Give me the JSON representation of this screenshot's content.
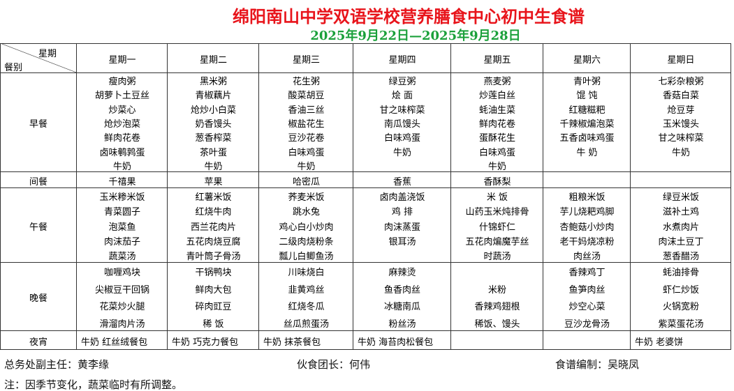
{
  "header": {
    "title": "绵阳南山中学双语学校营养膳食中心初中生食谱",
    "subtitle": "2025年9月22日—2025年9月28日"
  },
  "table": {
    "corner_top": "星期",
    "corner_bottom": "餐别",
    "days": [
      "星期一",
      "星期二",
      "星期三",
      "星期四",
      "星期五",
      "星期六",
      "星期日"
    ],
    "meals": [
      {
        "name": "早餐",
        "rows": [
          [
            "瘦肉粥",
            "黑米粥",
            "花生粥",
            "绿豆粥",
            "燕麦粥",
            "青叶粥",
            "七彩杂粮粥"
          ],
          [
            "胡萝卜土豆丝",
            "青椒藕片",
            "酸菜胡豆",
            "烩 面",
            "炒莲白丝",
            "馄 饨",
            "香菇白菜"
          ],
          [
            "炒菜心",
            "炝炒小白菜",
            "香油三丝",
            "甘之味榨菜",
            "蚝油生菜",
            "红糖糍粑",
            "炝豆芽"
          ],
          [
            "炝炒泡菜",
            "奶香馒头",
            "椒盐花生",
            "南瓜馒头",
            "鲜肉花卷",
            "千辣椒煸泡菜",
            "玉米馒头"
          ],
          [
            "鲜肉花卷",
            "葱香榨菜",
            "豆沙花卷",
            "白味鸡蛋",
            "蛋酥花生",
            "五香卤味鸡蛋",
            "甘之味榨菜"
          ],
          [
            "卤味鹌鹑蛋",
            "茶叶蛋",
            "白味鸡蛋",
            "牛奶",
            "白味鸡蛋",
            "牛 奶",
            "牛奶"
          ],
          [
            "牛奶",
            "牛奶",
            "牛奶",
            null,
            "牛奶",
            null,
            null
          ]
        ]
      },
      {
        "name": "间餐",
        "rows": [
          [
            "千禧果",
            "苹果",
            "哈密瓜",
            "香蕉",
            "香酥梨",
            null,
            null
          ]
        ]
      },
      {
        "name": "午餐",
        "rows": [
          [
            "玉米糁米饭",
            "红薯米饭",
            "荞麦米饭",
            "卤肉盖浇饭",
            "米 饭",
            "粗粮米饭",
            "绿豆米饭"
          ],
          [
            "青菜圆子",
            "红烧牛肉",
            "跳水兔",
            "鸡 排",
            "山药玉米炖排骨",
            "芋儿烧耙鸡脚",
            "滋补土鸡"
          ],
          [
            "泡菜鱼",
            "西兰花肉片",
            "鸡心白小炒肉",
            "肉沫蒸蛋",
            "什锦虾仁",
            "杏鲍菇小炒肉",
            "水煮肉片"
          ],
          [
            "肉沫茄子",
            "五花肉烧豆腐",
            "二级肉烧粉条",
            "银耳汤",
            "五花肉煸魔芋丝",
            "老干妈烧凉粉",
            "肉沫土豆丁"
          ],
          [
            "蔬菜汤",
            "青叶筒子骨汤",
            "瓢儿白鲫鱼汤",
            null,
            "时蔬汤",
            "肉丝汤",
            "葱香醋汤"
          ]
        ]
      },
      {
        "name": "晚餐",
        "rows": [
          [
            "咖喱鸡块",
            "干锅鸭块",
            "川味烧白",
            "麻辣烫",
            null,
            "香辣鸡丁",
            "蚝油排骨"
          ],
          [
            "尖椒豆干回锅",
            "鲜肉大包",
            "韭黄鸡丝",
            "鱼香肉丝",
            "米粉",
            "鱼笋肉丝",
            "虾仁炒饭"
          ],
          [
            "花菜炒火腿",
            "碎肉豇豆",
            "红烧冬瓜",
            "冰糖南瓜",
            "香辣鸡翅根",
            "炒空心菜",
            "火锅宽粉"
          ],
          [
            "滑溜肉片汤",
            "稀 饭",
            "丝瓜煎蛋汤",
            "粉丝汤",
            "稀饭、馒头",
            "豆沙龙骨汤",
            "紫菜蛋花汤"
          ]
        ]
      },
      {
        "name": "夜宵",
        "rows": [
          [
            "牛奶 红丝绒餐包",
            "牛奶 巧克力餐包",
            "牛奶 抹茶餐包",
            "牛奶 海苔肉松餐包",
            null,
            null,
            "牛奶 老婆饼"
          ]
        ]
      }
    ]
  },
  "footer": {
    "signatures": [
      "总务处副主任：黄李缘",
      "伙食团长：何伟",
      "食谱编制：吴晓凤"
    ],
    "note": "注：因季节变化，蔬菜临时有所调整。"
  }
}
